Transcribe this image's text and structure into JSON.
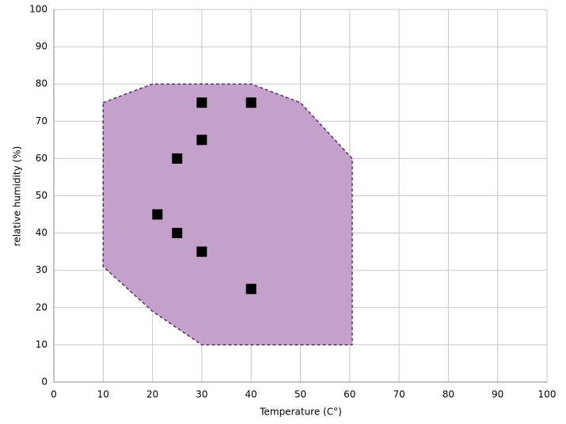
{
  "chart_data": {
    "type": "scatter",
    "xlabel": "Temperature (C°)",
    "ylabel": "relative humidity (%)",
    "x": [
      30,
      40,
      30,
      25,
      21,
      25,
      30,
      40
    ],
    "values": [
      75,
      75,
      65,
      60,
      45,
      40,
      35,
      25
    ],
    "color": "#000000",
    "region": {
      "x": [
        10,
        20,
        40,
        50,
        60.5,
        60.5,
        30,
        20,
        10
      ],
      "y": [
        75,
        80,
        80,
        75,
        60,
        10,
        10,
        19,
        31
      ],
      "color": "#c3a1ca",
      "edge_color": "#5b2d6b"
    },
    "xlim": [
      0,
      100
    ],
    "xticks": [
      0,
      10,
      20,
      30,
      40,
      50,
      60,
      70,
      80,
      90,
      100
    ],
    "ylim": [
      0,
      100
    ],
    "yticks": [
      0,
      10,
      20,
      30,
      40,
      50,
      60,
      70,
      80,
      90,
      100
    ],
    "grid": true
  }
}
